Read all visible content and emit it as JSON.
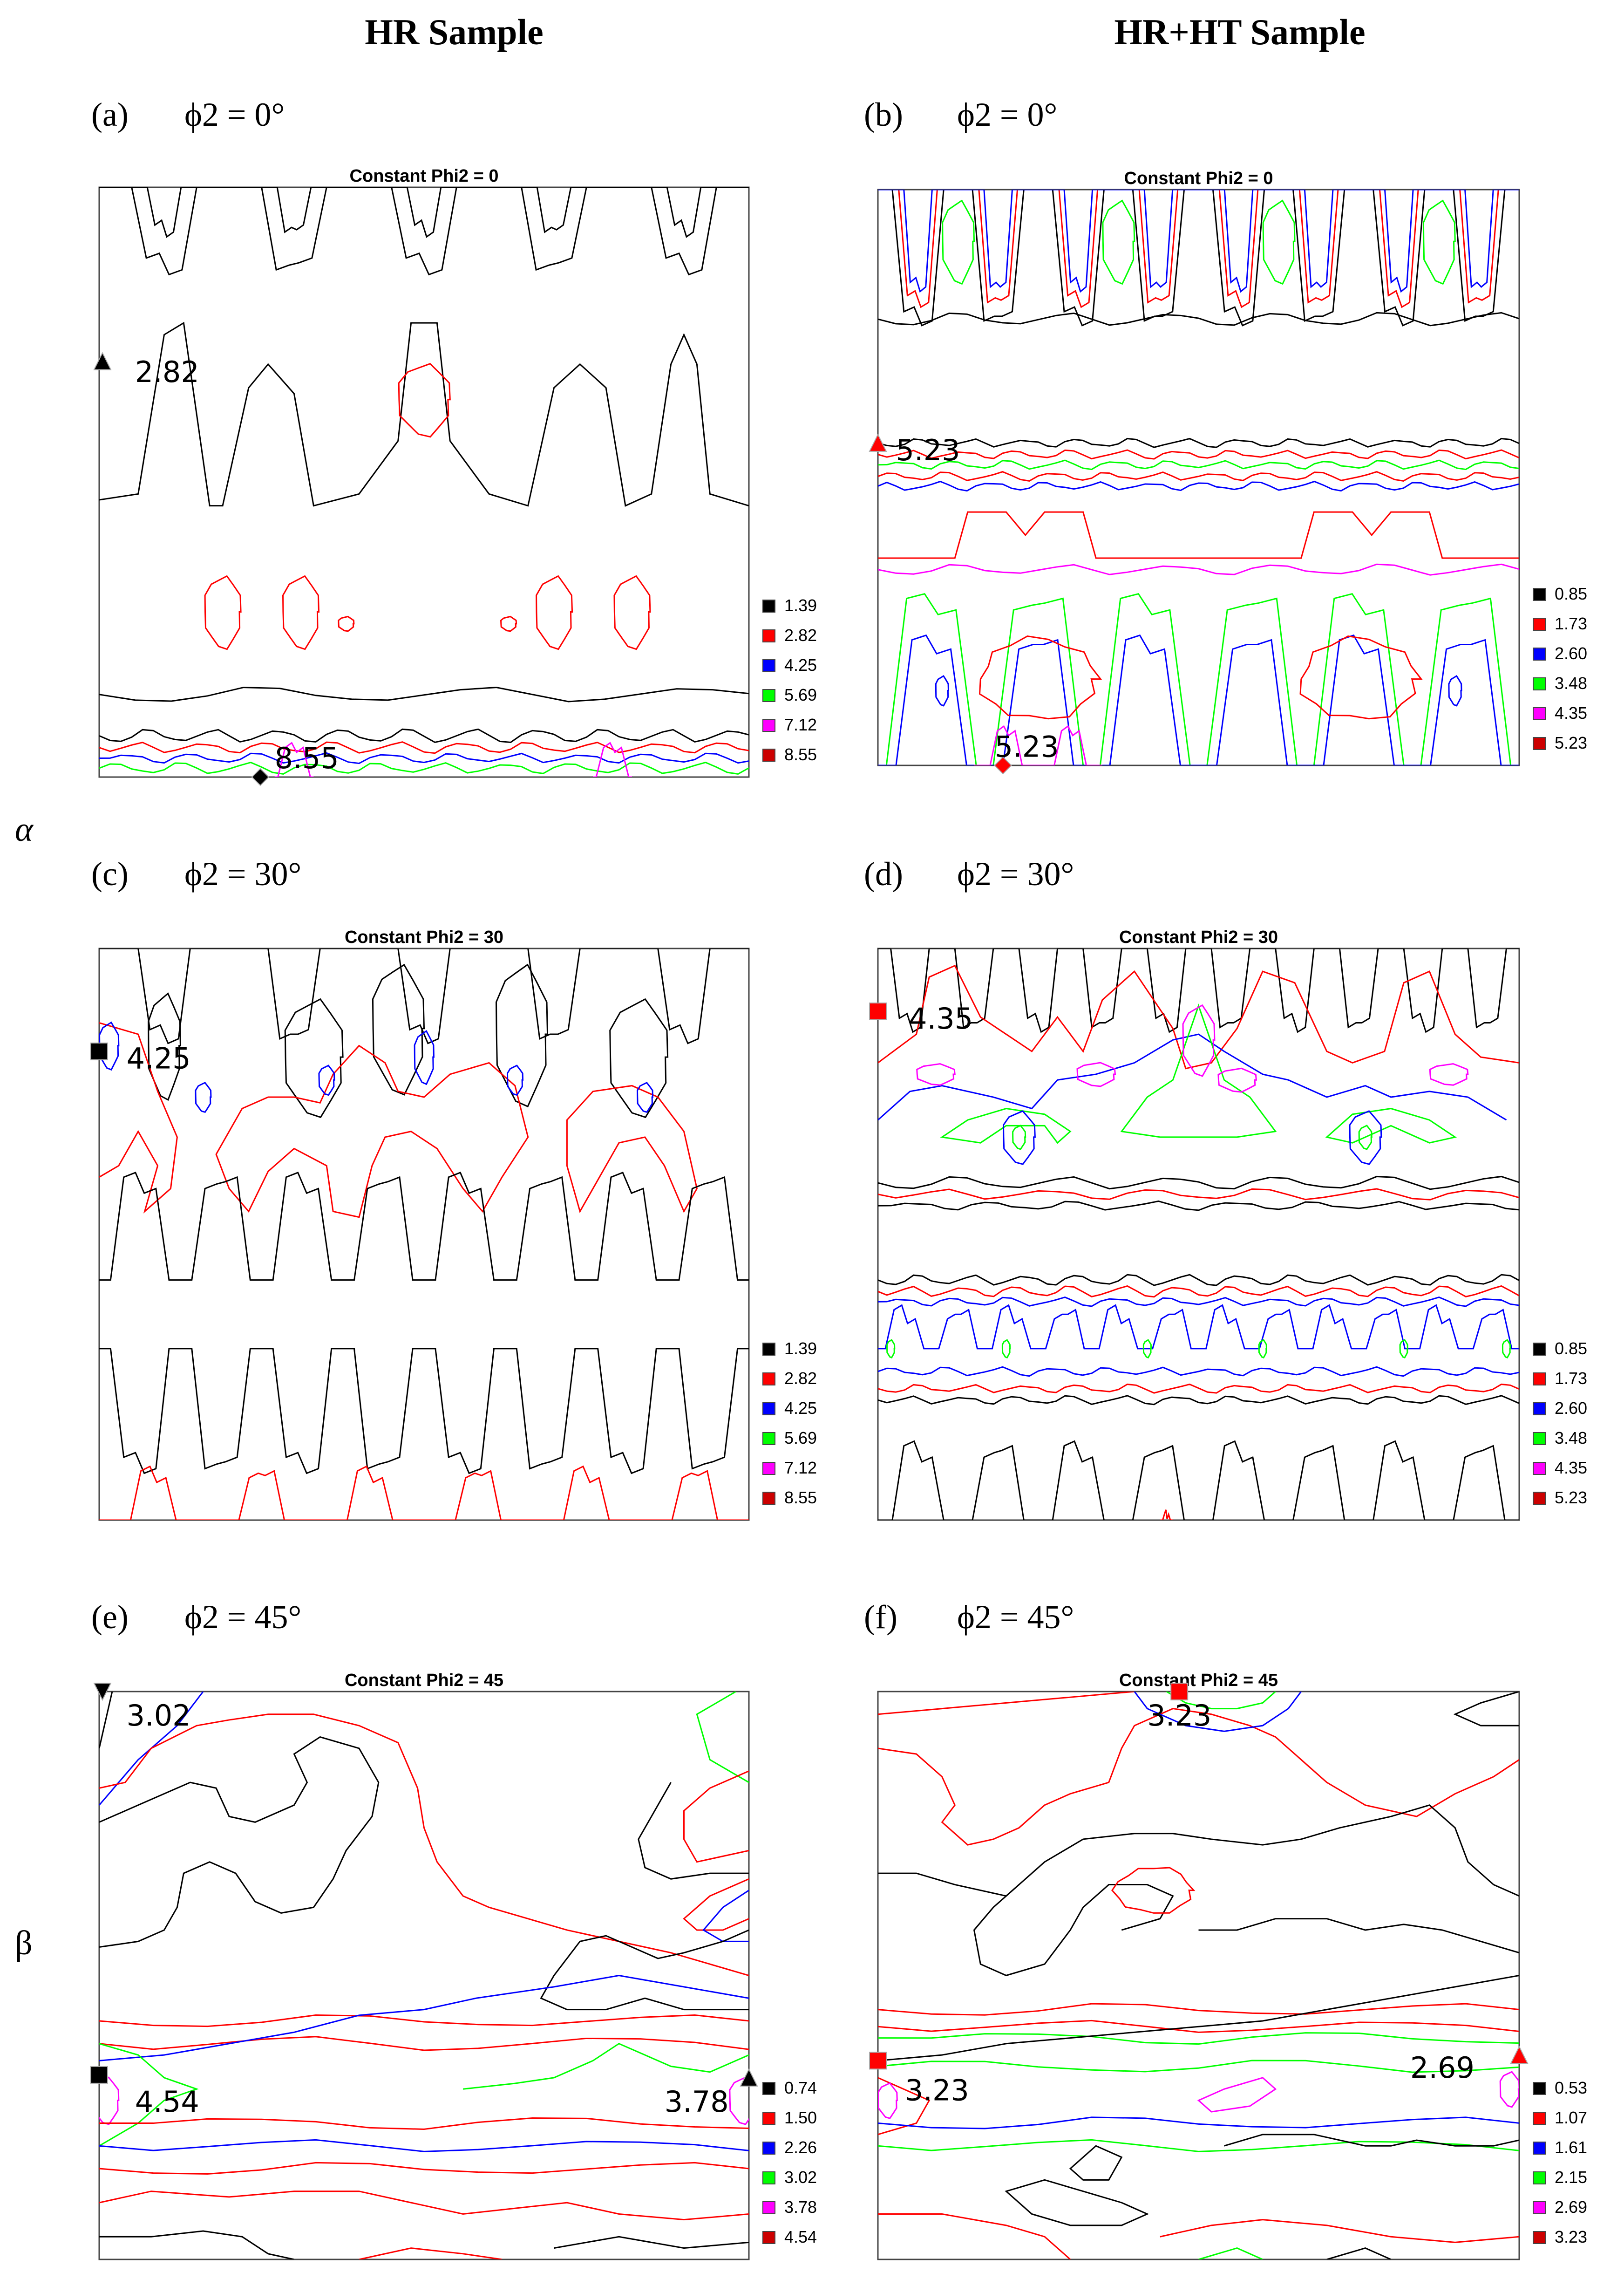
{
  "headers": {
    "left": "HR Sample",
    "right": "HR+HT Sample"
  },
  "phase_labels": {
    "alpha": "α",
    "beta": "β"
  },
  "legend_colors": [
    "#000000",
    "#ff0000",
    "#0000ff",
    "#00ff00",
    "#ff00ff",
    "#cc0000"
  ],
  "chart_data": [
    {
      "id": "a",
      "type": "contour",
      "panel_letter": "a",
      "phi2_label": "ϕ2 = 0°",
      "title": "Constant Phi2 = 0",
      "levels": [
        "1.39",
        "2.82",
        "4.25",
        "5.69",
        "7.12",
        "8.55"
      ],
      "annotations": [
        {
          "value": "2.82",
          "marker": "triangle-up",
          "color": "#000000",
          "location": "left edge, upper"
        },
        {
          "value": "8.55",
          "marker": "diamond",
          "color": "#000000",
          "location": "bottom edge"
        }
      ]
    },
    {
      "id": "b",
      "type": "contour",
      "panel_letter": "b",
      "phi2_label": "ϕ2 = 0°",
      "title": "Constant Phi2 = 0",
      "levels": [
        "0.85",
        "1.73",
        "2.60",
        "3.48",
        "4.35",
        "5.23"
      ],
      "annotations": [
        {
          "value": "5.23",
          "marker": "triangle-up",
          "color": "#ff0000",
          "location": "left edge, middle"
        },
        {
          "value": "5.23",
          "marker": "diamond",
          "color": "#ff0000",
          "location": "bottom edge"
        }
      ]
    },
    {
      "id": "c",
      "type": "contour",
      "panel_letter": "c",
      "phi2_label": "ϕ2 = 30°",
      "title": "Constant Phi2 = 30",
      "levels": [
        "1.39",
        "2.82",
        "4.25",
        "5.69",
        "7.12",
        "8.55"
      ],
      "annotations": [
        {
          "value": "4.25",
          "marker": "square",
          "color": "#000000",
          "location": "left edge, upper"
        }
      ]
    },
    {
      "id": "d",
      "type": "contour",
      "panel_letter": "d",
      "phi2_label": "ϕ2 = 30°",
      "title": "Constant Phi2 = 30",
      "levels": [
        "0.85",
        "1.73",
        "2.60",
        "3.48",
        "4.35",
        "5.23"
      ],
      "annotations": [
        {
          "value": "4.35",
          "marker": "square",
          "color": "#ff0000",
          "location": "left edge, upper"
        }
      ]
    },
    {
      "id": "e",
      "type": "contour",
      "panel_letter": "e",
      "phi2_label": "ϕ2 = 45°",
      "title": "Constant Phi2 = 45",
      "levels": [
        "0.74",
        "1.50",
        "2.26",
        "3.02",
        "3.78",
        "4.54"
      ],
      "annotations": [
        {
          "value": "3.02",
          "marker": "triangle-down",
          "color": "#000000",
          "location": "top-left corner"
        },
        {
          "value": "4.54",
          "marker": "square",
          "color": "#000000",
          "location": "left edge, lower"
        },
        {
          "value": "3.78",
          "marker": "triangle",
          "color": "#000000",
          "location": "right edge, lower"
        }
      ]
    },
    {
      "id": "f",
      "type": "contour",
      "panel_letter": "f",
      "phi2_label": "ϕ2 = 45°",
      "title": "Constant Phi2 = 45",
      "levels": [
        "0.53",
        "1.07",
        "1.61",
        "2.15",
        "2.69",
        "3.23"
      ],
      "annotations": [
        {
          "value": "3.23",
          "marker": "square",
          "color": "#ff0000",
          "location": "top edge, center"
        },
        {
          "value": "3.23",
          "marker": "square",
          "color": "#ff0000",
          "location": "left edge, lower"
        },
        {
          "value": "2.69",
          "marker": "triangle",
          "color": "#ff0000",
          "location": "right edge, lower"
        }
      ]
    }
  ]
}
